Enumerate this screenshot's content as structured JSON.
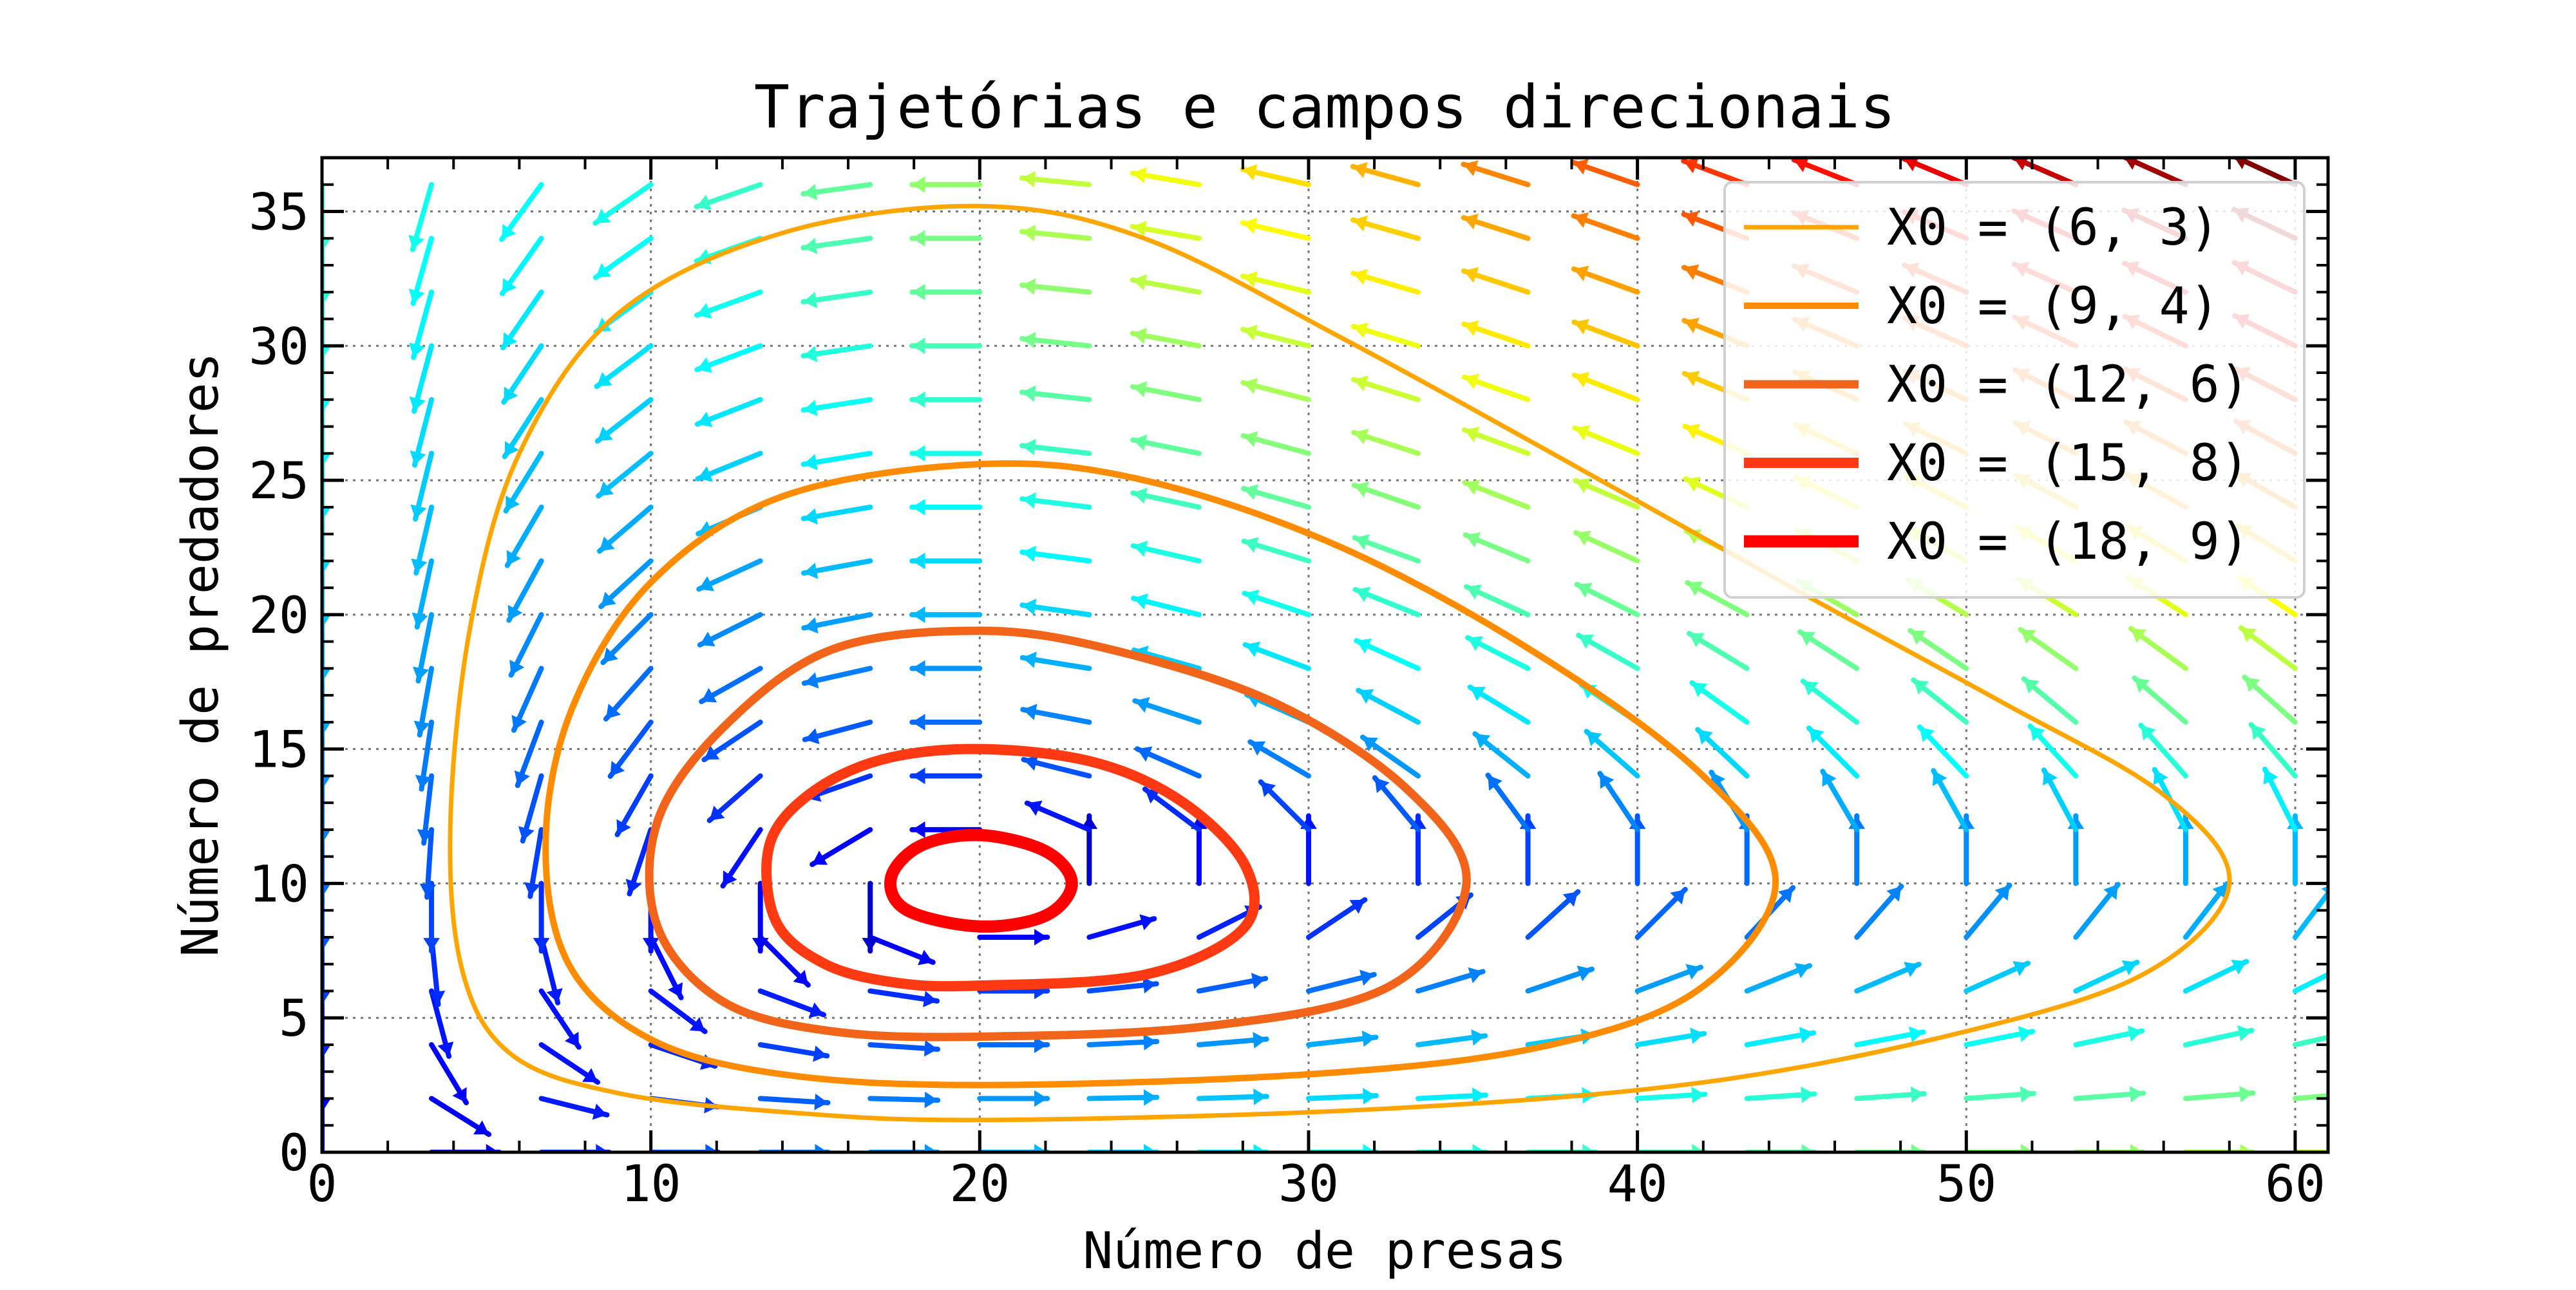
{
  "chart_data": {
    "type": "line",
    "title": "Trajetórias e campos direcionais",
    "xlabel": "Número de presas",
    "ylabel": "Número de predadores",
    "xlim": [
      0,
      61
    ],
    "ylim": [
      0,
      37
    ],
    "x_ticks": [
      0,
      10,
      20,
      30,
      40,
      50,
      60
    ],
    "y_ticks": [
      0,
      5,
      10,
      15,
      20,
      25,
      30,
      35
    ],
    "x_tick_labels": [
      "0",
      "10",
      "20",
      "30",
      "40",
      "50",
      "60"
    ],
    "y_tick_labels": [
      "0",
      "5",
      "10",
      "15",
      "20",
      "25",
      "30",
      "35"
    ],
    "grid": true,
    "grid_style": "dotted",
    "legend_position": "top-right",
    "equilibrium": [
      20,
      10
    ],
    "series": [
      {
        "name": "X0 = (6, 3)",
        "color": "#ffa500",
        "line_weight": 1,
        "points": [
          [
            20,
            1.2
          ],
          [
            32,
            1.6
          ],
          [
            42,
            2.6
          ],
          [
            50,
            4.5
          ],
          [
            55.5,
            6.7
          ],
          [
            58,
            10
          ],
          [
            56,
            13.3
          ],
          [
            51,
            16.8
          ],
          [
            45,
            20.8
          ],
          [
            38,
            25.6
          ],
          [
            31,
            30.3
          ],
          [
            25,
            34
          ],
          [
            20,
            35.2
          ],
          [
            14,
            34.2
          ],
          [
            9,
            31.2
          ],
          [
            6,
            26
          ],
          [
            4.5,
            19.5
          ],
          [
            3.9,
            12
          ],
          [
            4.3,
            6.6
          ],
          [
            5.8,
            3.6
          ],
          [
            9,
            2.2
          ],
          [
            14,
            1.5
          ],
          [
            20,
            1.2
          ]
        ]
      },
      {
        "name": "X0 = (9, 4)",
        "color": "#ff8c00",
        "line_weight": 2,
        "points": [
          [
            20,
            2.5
          ],
          [
            30,
            2.9
          ],
          [
            37,
            3.9
          ],
          [
            41.8,
            6
          ],
          [
            44.2,
            10
          ],
          [
            42,
            14
          ],
          [
            37,
            18.5
          ],
          [
            31,
            22.5
          ],
          [
            25,
            25
          ],
          [
            20,
            25.6
          ],
          [
            14,
            24.4
          ],
          [
            10,
            21.2
          ],
          [
            7.6,
            16.5
          ],
          [
            6.8,
            11.5
          ],
          [
            7.5,
            7
          ],
          [
            10,
            4.2
          ],
          [
            14,
            2.9
          ],
          [
            20,
            2.5
          ]
        ]
      },
      {
        "name": "X0 = (12, 6)",
        "color": "#f26419",
        "line_weight": 3,
        "points": [
          [
            20,
            4.3
          ],
          [
            27,
            4.7
          ],
          [
            32.5,
            6.2
          ],
          [
            34.8,
            10
          ],
          [
            33,
            13.5
          ],
          [
            29,
            16.7
          ],
          [
            24,
            18.7
          ],
          [
            20,
            19.4
          ],
          [
            15.5,
            18.7
          ],
          [
            12.2,
            15.8
          ],
          [
            10.2,
            12.3
          ],
          [
            10.2,
            8.4
          ],
          [
            12.2,
            5.6
          ],
          [
            15.5,
            4.5
          ],
          [
            20,
            4.3
          ]
        ]
      },
      {
        "name": "X0 = (15, 8)",
        "color": "#ff3a12",
        "line_weight": 4,
        "points": [
          [
            20,
            6.2
          ],
          [
            25,
            6.6
          ],
          [
            28,
            8.3
          ],
          [
            28.1,
            10.6
          ],
          [
            26.2,
            13
          ],
          [
            23.5,
            14.5
          ],
          [
            20,
            15
          ],
          [
            17,
            14.6
          ],
          [
            14.8,
            13.3
          ],
          [
            13.6,
            11.4
          ],
          [
            13.8,
            8.6
          ],
          [
            15.3,
            7
          ],
          [
            17.5,
            6.3
          ],
          [
            20,
            6.2
          ]
        ]
      },
      {
        "name": "X0 = (18, 9)",
        "color": "#ff0000",
        "line_weight": 5,
        "points": [
          [
            20,
            8.4
          ],
          [
            22,
            8.8
          ],
          [
            22.8,
            10
          ],
          [
            22,
            11.2
          ],
          [
            20,
            11.8
          ],
          [
            18.2,
            11.4
          ],
          [
            17.3,
            10.2
          ],
          [
            17.8,
            9
          ],
          [
            20,
            8.4
          ]
        ]
      }
    ],
    "direction_field": {
      "x_values": [
        0,
        3.33,
        6.67,
        10,
        13.33,
        16.67,
        20,
        23.33,
        26.67,
        30,
        33.33,
        36.67,
        40,
        43.33,
        46.67,
        50,
        53.33,
        56.67,
        60
      ],
      "y_values": [
        0,
        2,
        4,
        6,
        8,
        10,
        12,
        14,
        16,
        18,
        20,
        22,
        24,
        26,
        28,
        30,
        32,
        34,
        36
      ],
      "dx_expression": "x*(1 - y/10)",
      "dy_expression": "y*(x/20 - 1)",
      "colormap": "jet"
    }
  }
}
